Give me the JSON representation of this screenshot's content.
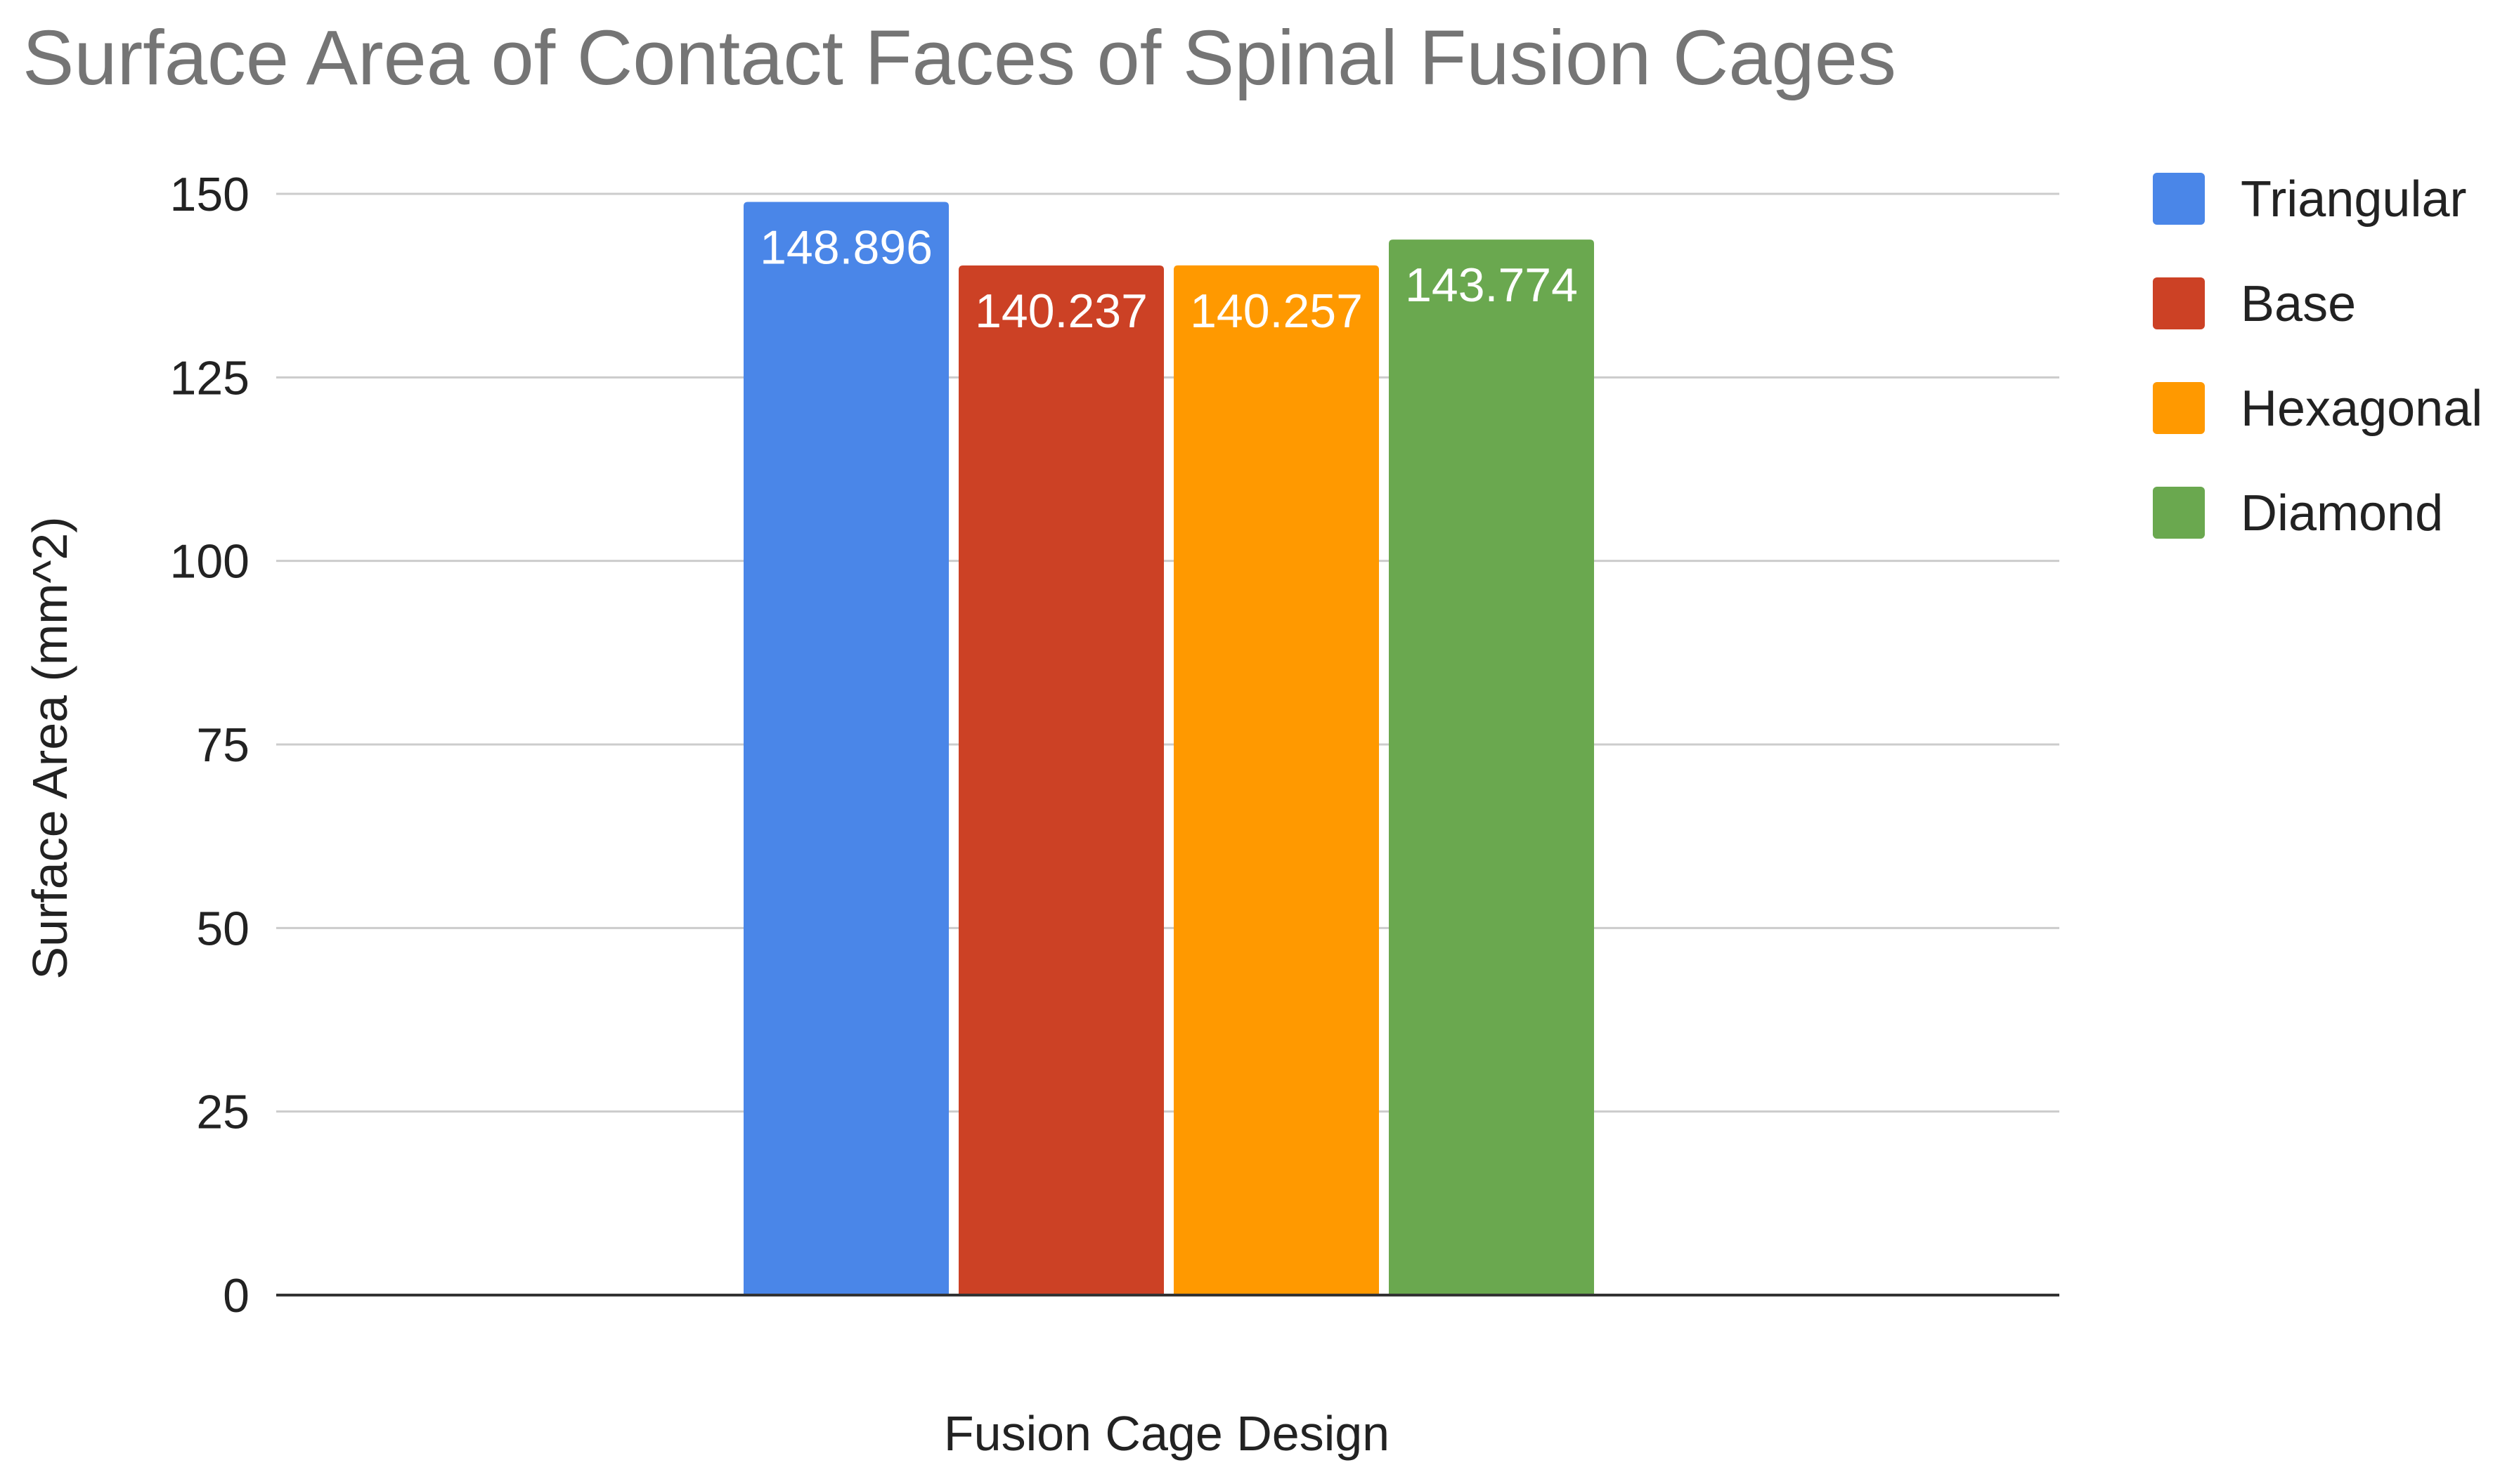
{
  "chart_data": {
    "type": "bar",
    "title": "Surface Area of Contact Faces of Spinal Fusion Cages",
    "xlabel": "Fusion Cage Design",
    "ylabel": "Surface Area (mm^2)",
    "ylim": [
      0,
      150
    ],
    "yticks": [
      0,
      25,
      50,
      75,
      100,
      125,
      150
    ],
    "grid": true,
    "legend_position": "right",
    "categories": [
      ""
    ],
    "series": [
      {
        "name": "Triangular",
        "values": [
          148.896
        ],
        "color": "#4a86e8",
        "label": "148.896"
      },
      {
        "name": "Base",
        "values": [
          140.237
        ],
        "color": "#cc4125",
        "label": "140.237"
      },
      {
        "name": "Hexagonal",
        "values": [
          140.257
        ],
        "color": "#ff9900",
        "label": "140.257"
      },
      {
        "name": "Diamond",
        "values": [
          143.774
        ],
        "color": "#6aa84f",
        "label": "143.774"
      }
    ]
  },
  "colors": {
    "title": "#757575",
    "axis_text": "#222222",
    "gridline": "#cccccc",
    "baseline": "#333333",
    "bar_label": "#ffffff"
  }
}
